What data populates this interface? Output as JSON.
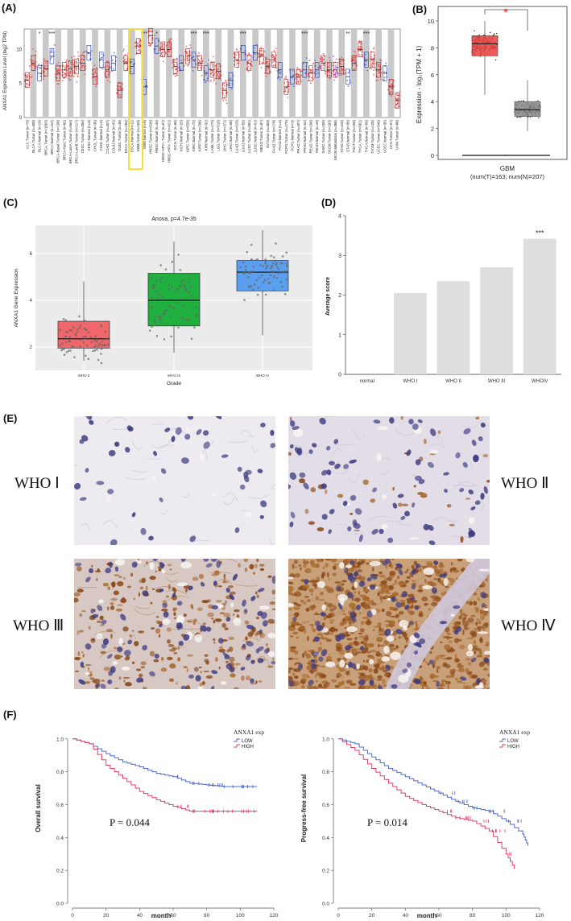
{
  "panels": {
    "A": {
      "label": "(A)",
      "ylabel": "ANXA1 Expression Level (log2 TPM)",
      "yticks": [
        "0",
        "5",
        "10"
      ],
      "categories": [
        "ACC.Tumor (n=79)",
        "BLCA.Tumor (n=408)",
        "BLCA.Normal (n=19)",
        "BRCA.Tumor (n=1093)",
        "BRCA.Normal (n=112)",
        "BRCA-Basal.Tumor (n=190)",
        "BRCA-Her2.Tumor (n=82)",
        "BRCA-LumA.Tumor (n=564)",
        "BRCA-LumB.Tumor (n=217)",
        "CESC.Tumor (n=304)",
        "CESC.Normal (n=3)",
        "CHOL.Tumor (n=36)",
        "CHOL.Normal (n=9)",
        "COAD.Tumor (n=457)",
        "COAD.Normal (n=41)",
        "DLBC.Tumor (n=48)",
        "ESCA.Tumor (n=184)",
        "ESCA.Normal (n=11)",
        "GBM.Tumor (n=153)",
        "GBM.Normal (n=5)",
        "HNSC.Tumor (n=520)",
        "HNSC.Normal (n=44)",
        "HNSC-HPV+.Tumor (n=97)",
        "HNSC-HPV-.Tumor (n=421)",
        "KICH.Tumor (n=66)",
        "KICH.Normal (n=25)",
        "KIRC.Tumor (n=533)",
        "KIRC.Normal (n=72)",
        "KIRP.Tumor (n=290)",
        "KIRP.Normal (n=32)",
        "LAML.Tumor (n=173)",
        "LGG.Tumor (n=516)",
        "LIHC.Tumor (n=371)",
        "LIHC.Normal (n=50)",
        "LUAD.Tumor (n=515)",
        "LUAD.Normal (n=59)",
        "LUSC.Tumor (n=501)",
        "LUSC.Normal (n=51)",
        "MESO.Tumor (n=87)",
        "OV.Tumor (n=303)",
        "PAAD.Tumor (n=178)",
        "PAAD.Normal (n=4)",
        "PCPG.Tumor (n=179)",
        "PCPG.Normal (n=3)",
        "PRAD.Tumor (n=497)",
        "PRAD.Normal (n=52)",
        "READ.Tumor (n=166)",
        "READ.Normal (n=10)",
        "SARC.Tumor (n=259)",
        "SKCM.Tumor (n=103)",
        "SKCM.Metastasis (n=368)",
        "STAD.Tumor (n=415)",
        "STAD.Normal (n=35)",
        "TGCT.Tumor (n=150)",
        "THCA.Tumor (n=501)",
        "THCA.Normal (n=59)",
        "THYM.Tumor (n=120)",
        "UCEC.Tumor (n=545)",
        "UCEC.Normal (n=35)",
        "UCS.Tumor (n=57)",
        "UVM.Tumor (n=80)"
      ],
      "stars": [
        {
          "at": 2,
          "text": "*"
        },
        {
          "at": 4,
          "text": "***"
        },
        {
          "at": 19,
          "text": "***"
        },
        {
          "at": 21,
          "text": "*"
        },
        {
          "at": 27,
          "text": "***"
        },
        {
          "at": 29,
          "text": "***"
        },
        {
          "at": 35,
          "text": "***"
        },
        {
          "at": 45,
          "text": "***"
        },
        {
          "at": 52,
          "text": "**"
        },
        {
          "at": 55,
          "text": "***"
        }
      ]
    },
    "B": {
      "label": "(B)",
      "ylabel": "Expression - log₂(TPM + 1)",
      "yticks": [
        "0",
        "2",
        "4",
        "6",
        "8",
        "10"
      ],
      "xlabel": "GBM",
      "xsub": "(num(T)=163; num(N)=207)",
      "sig": "*"
    },
    "C": {
      "label": "(C)",
      "title": "Anova, p=4.7e-35",
      "ylabel": "ANXA1 Gene Expression",
      "xlabel": "Grade",
      "yticks": [
        "2",
        "4",
        "6"
      ],
      "categories": [
        "WHO II",
        "WHO III",
        "WHO IV"
      ]
    },
    "D": {
      "label": "(D)",
      "ylabel": "Average score",
      "yticks": [
        "0",
        "1",
        "2",
        "3",
        "4"
      ],
      "sig": "***"
    },
    "E": {
      "label": "(E)",
      "grades": [
        "WHO Ⅰ",
        "WHO Ⅱ",
        "WHO Ⅲ",
        "WHO Ⅳ"
      ]
    },
    "F": {
      "label": "(F)",
      "xlabel": "month",
      "xticks": [
        "0",
        "20",
        "40",
        "60",
        "80",
        "100",
        "120"
      ],
      "yticks": [
        "0.0",
        "0.2",
        "0.4",
        "0.6",
        "0.8",
        "1.0"
      ],
      "legend_title": "ANXA1 exp",
      "legend": [
        "LOW",
        "HIGH"
      ],
      "left": {
        "ylabel": "Overall survival",
        "p": "P = 0.044"
      },
      "right": {
        "ylabel": "Progress-free survival",
        "p": "P = 0.014"
      }
    }
  },
  "colors": {
    "red": "#e8403f",
    "blue": "#3a54d6",
    "green": "#22b33a",
    "lightblue": "#4a90e8",
    "gray": "#dedede",
    "km_blue": "#4d6bc9",
    "km_red": "#e83c6a",
    "tissue_bg": "#e6dfe8",
    "brown": "#9a5a24",
    "nuclei": "#3d3a80"
  },
  "chart_data": [
    {
      "panel": "A",
      "type": "box",
      "ylabel": "ANXA1 Expression Level (log2 TPM)",
      "ylim": [
        0,
        13
      ],
      "medians": [
        5.5,
        8,
        6.5,
        7.2,
        9,
        6.5,
        7,
        7.2,
        7.5,
        8,
        9.5,
        6,
        8.5,
        7,
        8,
        4,
        8,
        7.5,
        10.5,
        4.5,
        12,
        10.5,
        10,
        10,
        7.5,
        8,
        9,
        8.5,
        8,
        6.5,
        7,
        6.8,
        4,
        5.5,
        8.5,
        9.5,
        8,
        9.5,
        9,
        7.5,
        8.5,
        7,
        4.5,
        6,
        6,
        7,
        6.5,
        7,
        8,
        7,
        7,
        7.5,
        6,
        8,
        10,
        8.5,
        8.5,
        7,
        6.5,
        4.5,
        2.5
      ]
    },
    {
      "panel": "B",
      "type": "box",
      "categories": [
        "T",
        "N"
      ],
      "ylim": [
        0,
        11
      ],
      "medians": [
        8.3,
        3.4
      ],
      "q1": [
        7.4,
        2.9
      ],
      "q3": [
        8.9,
        4.0
      ]
    },
    {
      "panel": "C",
      "type": "box",
      "title": "Anova, p=4.7e-35",
      "xlabel": "Grade",
      "ylabel": "ANXA1 Gene Expression",
      "categories": [
        "WHO II",
        "WHO III",
        "WHO IV"
      ],
      "ylim": [
        1,
        7.2
      ],
      "medians": [
        2.35,
        4.0,
        5.2
      ],
      "q1": [
        1.95,
        2.9,
        4.4
      ],
      "q3": [
        3.1,
        5.15,
        5.7
      ],
      "whisker_low": [
        1.4,
        1.75,
        2.5
      ],
      "whisker_high": [
        4.8,
        6.5,
        7.0
      ]
    },
    {
      "panel": "D",
      "type": "bar",
      "ylabel": "Average score",
      "categories": [
        "normal",
        "WHO I",
        "WHO II",
        "WHO III",
        "WHOIV"
      ],
      "values": [
        0,
        2.05,
        2.35,
        2.7,
        3.42
      ],
      "ylim": [
        0,
        4
      ]
    },
    {
      "panel": "F-left",
      "type": "line",
      "xlabel": "month",
      "ylabel": "Overall survival",
      "xlim": [
        0,
        120
      ],
      "ylim": [
        0,
        1
      ],
      "series": [
        {
          "name": "LOW",
          "x": [
            0,
            10,
            20,
            30,
            40,
            50,
            60,
            70,
            80,
            90,
            100,
            110
          ],
          "y": [
            1.0,
            0.97,
            0.91,
            0.86,
            0.83,
            0.79,
            0.77,
            0.73,
            0.72,
            0.71,
            0.71,
            0.71
          ]
        },
        {
          "name": "HIGH",
          "x": [
            0,
            10,
            20,
            30,
            40,
            50,
            60,
            70,
            80,
            90,
            100,
            110
          ],
          "y": [
            1.0,
            0.97,
            0.84,
            0.76,
            0.68,
            0.63,
            0.59,
            0.56,
            0.56,
            0.56,
            0.56,
            0.56
          ]
        }
      ]
    },
    {
      "panel": "F-right",
      "type": "line",
      "xlabel": "month",
      "ylabel": "Progress-free survival",
      "xlim": [
        0,
        120
      ],
      "ylim": [
        0,
        1
      ],
      "series": [
        {
          "name": "LOW",
          "x": [
            0,
            10,
            20,
            30,
            40,
            50,
            60,
            70,
            80,
            90,
            100,
            110,
            113
          ],
          "y": [
            1.0,
            0.97,
            0.89,
            0.82,
            0.77,
            0.72,
            0.67,
            0.62,
            0.58,
            0.56,
            0.5,
            0.42,
            0.35
          ]
        },
        {
          "name": "HIGH",
          "x": [
            0,
            10,
            20,
            30,
            40,
            50,
            60,
            70,
            80,
            90,
            100,
            105
          ],
          "y": [
            1.0,
            0.93,
            0.82,
            0.73,
            0.65,
            0.6,
            0.56,
            0.52,
            0.5,
            0.44,
            0.3,
            0.21
          ]
        }
      ]
    }
  ]
}
